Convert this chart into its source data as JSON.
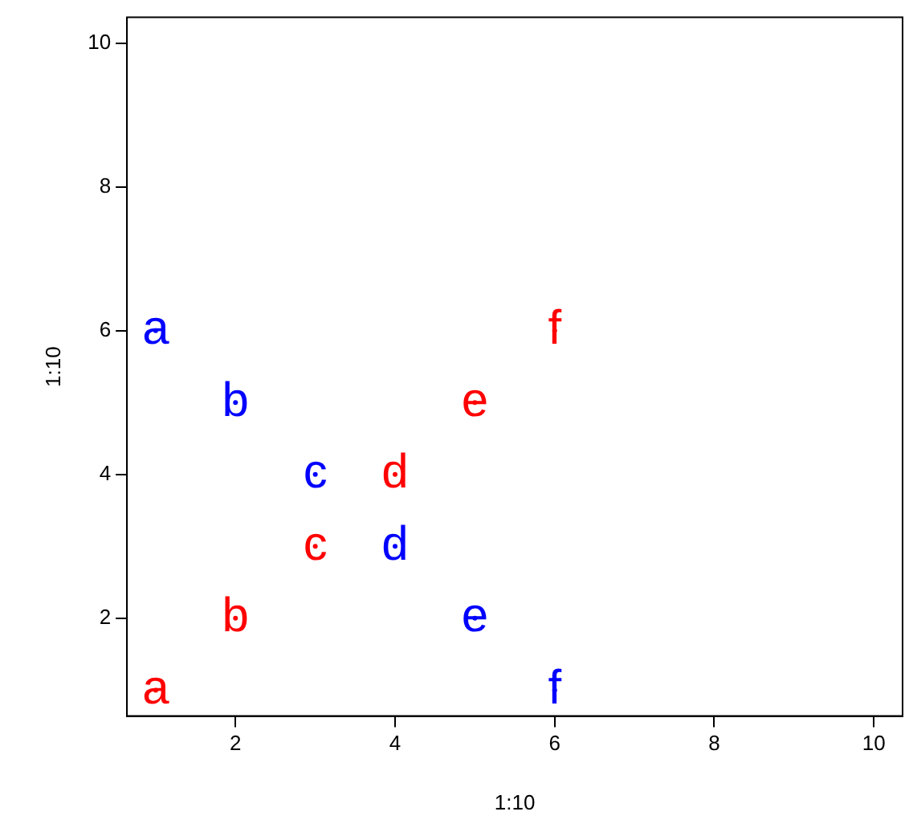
{
  "chart_data": {
    "type": "scatter",
    "xlabel": "1:10",
    "ylabel": "1:10",
    "xlim": [
      0.64,
      10.36
    ],
    "ylim": [
      0.64,
      10.36
    ],
    "xticks": [
      2,
      4,
      6,
      8,
      10
    ],
    "yticks": [
      2,
      4,
      6,
      8,
      10
    ],
    "grid": false,
    "legend": false,
    "series": [
      {
        "color": "#ff0000",
        "x": [
          1,
          2,
          3,
          4,
          5,
          6
        ],
        "values": [
          1,
          2,
          3,
          4,
          5,
          6
        ],
        "value_labels": [
          "a",
          "b",
          "c",
          "d",
          "e",
          "f"
        ]
      },
      {
        "color": "#0000ff",
        "x": [
          1,
          2,
          3,
          4,
          5,
          6
        ],
        "values": [
          6,
          5,
          4,
          3,
          2,
          1
        ],
        "value_labels": [
          "a",
          "b",
          "c",
          "d",
          "e",
          "f"
        ]
      }
    ]
  }
}
